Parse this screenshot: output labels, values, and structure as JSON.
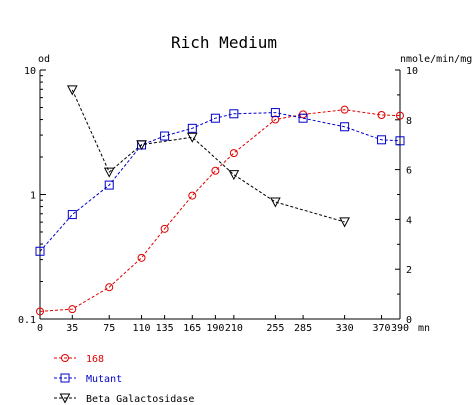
{
  "chart_data": {
    "type": "line",
    "title": "Rich Medium",
    "left_axis_label": "od",
    "right_axis_label": "nmole/min/mg",
    "x_unit_label": "mn",
    "x_ticks": [
      0,
      35,
      75,
      110,
      135,
      165,
      190,
      210,
      255,
      285,
      330,
      370,
      390
    ],
    "x_tick_labels": [
      "0",
      "35",
      "75",
      "110",
      "135",
      "165",
      "190",
      "210",
      "255",
      "285",
      "330",
      "370",
      "390"
    ],
    "xlim": [
      0,
      390
    ],
    "left_ylim": [
      0.1,
      10
    ],
    "left_scale": "log",
    "left_ticks": [
      0.1,
      1,
      10
    ],
    "left_tick_labels": [
      "0.1",
      "1",
      "10"
    ],
    "right_ylim": [
      0,
      10
    ],
    "right_scale": "linear",
    "right_ticks": [
      0,
      2,
      4,
      6,
      8,
      10
    ],
    "right_tick_labels": [
      "0",
      "2",
      "4",
      "6",
      "8",
      "10"
    ],
    "series": [
      {
        "name": "168",
        "axis": "left",
        "marker": "circle",
        "color": "#e00000",
        "x": [
          0,
          35,
          75,
          110,
          135,
          165,
          190,
          210,
          255,
          285,
          330,
          370,
          390
        ],
        "y": [
          0.115,
          0.12,
          0.18,
          0.31,
          0.53,
          0.98,
          1.55,
          2.15,
          4.0,
          4.4,
          4.8,
          4.35,
          4.3
        ]
      },
      {
        "name": "Mutant",
        "axis": "left",
        "marker": "square",
        "color": "#0000cc",
        "x": [
          0,
          35,
          75,
          110,
          135,
          165,
          190,
          210,
          255,
          285,
          330,
          370,
          390
        ],
        "y": [
          0.35,
          0.69,
          1.19,
          2.5,
          2.95,
          3.4,
          4.1,
          4.45,
          4.55,
          4.1,
          3.5,
          2.75,
          2.7
        ]
      },
      {
        "name": "Beta Galactosidase",
        "axis": "right",
        "marker": "triangle-down",
        "color": "#000000",
        "x": [
          35,
          75,
          110,
          165,
          210,
          255,
          330
        ],
        "y": [
          9.2,
          5.9,
          7.0,
          7.3,
          5.8,
          4.7,
          3.9
        ]
      }
    ],
    "legend_position": "bottom-left"
  }
}
